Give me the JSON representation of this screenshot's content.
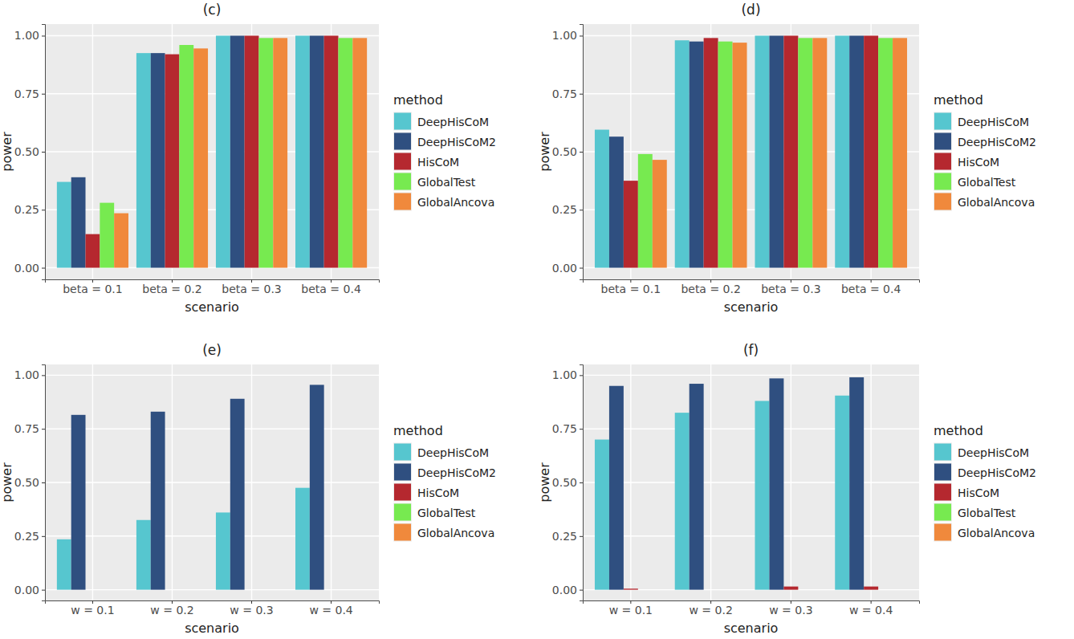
{
  "chart_data": [
    {
      "type": "bar",
      "title": "(c)",
      "x_label": "scenario",
      "y_label": "power",
      "legend_title": "method",
      "legend": "right",
      "grid": true,
      "categories": [
        "beta = 0.1",
        "beta = 0.2",
        "beta = 0.3",
        "beta = 0.4"
      ],
      "series": [
        {
          "name": "DeepHisCoM",
          "color": "#56c6cf",
          "values": [
            0.37,
            0.925,
            1.0,
            1.0
          ]
        },
        {
          "name": "DeepHisCoM2",
          "color": "#2f4f80",
          "values": [
            0.39,
            0.925,
            1.0,
            1.0
          ]
        },
        {
          "name": "HisCoM",
          "color": "#b5282f",
          "values": [
            0.145,
            0.92,
            1.0,
            1.0
          ]
        },
        {
          "name": "GlobalTest",
          "color": "#77ea50",
          "values": [
            0.28,
            0.96,
            0.99,
            0.99
          ]
        },
        {
          "name": "GlobalAncova",
          "color": "#f0893c",
          "values": [
            0.235,
            0.945,
            0.99,
            0.99
          ]
        }
      ],
      "ylim": [
        -0.05,
        1.05
      ],
      "yticks": [
        {
          "value": 0,
          "label": "0.00"
        },
        {
          "value": 0.25,
          "label": "0.25"
        },
        {
          "value": 0.5,
          "label": "0.50"
        },
        {
          "value": 0.75,
          "label": "0.75"
        },
        {
          "value": 1,
          "label": "1.00"
        }
      ]
    },
    {
      "type": "bar",
      "title": "(d)",
      "x_label": "scenario",
      "y_label": "power",
      "legend_title": "method",
      "legend": "right",
      "grid": true,
      "categories": [
        "beta = 0.1",
        "beta = 0.2",
        "beta = 0.3",
        "beta = 0.4"
      ],
      "series": [
        {
          "name": "DeepHisCoM",
          "color": "#56c6cf",
          "values": [
            0.595,
            0.98,
            1.0,
            1.0
          ]
        },
        {
          "name": "DeepHisCoM2",
          "color": "#2f4f80",
          "values": [
            0.565,
            0.975,
            1.0,
            1.0
          ]
        },
        {
          "name": "HisCoM",
          "color": "#b5282f",
          "values": [
            0.375,
            0.99,
            1.0,
            1.0
          ]
        },
        {
          "name": "GlobalTest",
          "color": "#77ea50",
          "values": [
            0.49,
            0.975,
            0.99,
            0.99
          ]
        },
        {
          "name": "GlobalAncova",
          "color": "#f0893c",
          "values": [
            0.465,
            0.97,
            0.99,
            0.99
          ]
        }
      ],
      "ylim": [
        -0.05,
        1.05
      ],
      "yticks": [
        {
          "value": 0,
          "label": "0.00"
        },
        {
          "value": 0.25,
          "label": "0.25"
        },
        {
          "value": 0.5,
          "label": "0.50"
        },
        {
          "value": 0.75,
          "label": "0.75"
        },
        {
          "value": 1,
          "label": "1.00"
        }
      ]
    },
    {
      "type": "bar",
      "title": "(e)",
      "x_label": "scenario",
      "y_label": "power",
      "legend_title": "method",
      "legend": "right",
      "grid": true,
      "categories": [
        "w = 0.1",
        "w = 0.2",
        "w = 0.3",
        "w = 0.4"
      ],
      "series": [
        {
          "name": "DeepHisCoM",
          "color": "#56c6cf",
          "values": [
            0.235,
            0.325,
            0.36,
            0.475
          ]
        },
        {
          "name": "DeepHisCoM2",
          "color": "#2f4f80",
          "values": [
            0.815,
            0.83,
            0.89,
            0.955
          ]
        },
        {
          "name": "HisCoM",
          "color": "#b5282f",
          "values": [
            0,
            0,
            0,
            0
          ]
        },
        {
          "name": "GlobalTest",
          "color": "#77ea50",
          "values": [
            0,
            0,
            0,
            0
          ]
        },
        {
          "name": "GlobalAncova",
          "color": "#f0893c",
          "values": [
            0,
            0,
            0,
            0
          ]
        }
      ],
      "ylim": [
        -0.05,
        1.05
      ],
      "yticks": [
        {
          "value": 0,
          "label": "0.00"
        },
        {
          "value": 0.25,
          "label": "0.25"
        },
        {
          "value": 0.5,
          "label": "0.50"
        },
        {
          "value": 0.75,
          "label": "0.75"
        },
        {
          "value": 1,
          "label": "1.00"
        }
      ]
    },
    {
      "type": "bar",
      "title": "(f)",
      "x_label": "scenario",
      "y_label": "power",
      "legend_title": "method",
      "legend": "right",
      "grid": true,
      "categories": [
        "w = 0.1",
        "w = 0.2",
        "w = 0.3",
        "w = 0.4"
      ],
      "series": [
        {
          "name": "DeepHisCoM",
          "color": "#56c6cf",
          "values": [
            0.7,
            0.825,
            0.88,
            0.905
          ]
        },
        {
          "name": "DeepHisCoM2",
          "color": "#2f4f80",
          "values": [
            0.95,
            0.96,
            0.985,
            0.99
          ]
        },
        {
          "name": "HisCoM",
          "color": "#b5282f",
          "values": [
            0.005,
            0,
            0.015,
            0.015
          ]
        },
        {
          "name": "GlobalTest",
          "color": "#77ea50",
          "values": [
            0,
            0,
            0,
            0
          ]
        },
        {
          "name": "GlobalAncova",
          "color": "#f0893c",
          "values": [
            0,
            0,
            0,
            0
          ]
        }
      ],
      "ylim": [
        -0.05,
        1.05
      ],
      "yticks": [
        {
          "value": 0,
          "label": "0.00"
        },
        {
          "value": 0.25,
          "label": "0.25"
        },
        {
          "value": 0.5,
          "label": "0.50"
        },
        {
          "value": 0.75,
          "label": "0.75"
        },
        {
          "value": 1,
          "label": "1.00"
        }
      ]
    }
  ]
}
